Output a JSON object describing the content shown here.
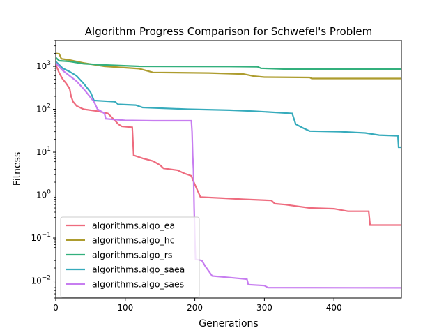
{
  "chart_data": {
    "type": "line",
    "title": "Algorithm Progress Comparison for Schwefel's Problem",
    "xlabel": "Generations",
    "ylabel": "Fitness",
    "xlim": [
      0,
      497
    ],
    "ylim": [
      0.004,
      4000
    ],
    "yscale": "log",
    "grid": false,
    "legend_position": "lower-left",
    "x_ticks": [
      {
        "value": 0,
        "label": "0"
      },
      {
        "value": 100,
        "label": "100"
      },
      {
        "value": 200,
        "label": "200"
      },
      {
        "value": 300,
        "label": "300"
      },
      {
        "value": 400,
        "label": "400"
      }
    ],
    "y_ticks": [
      {
        "value": 0.01,
        "base": "10",
        "exp": "−2"
      },
      {
        "value": 0.1,
        "base": "10",
        "exp": "−1"
      },
      {
        "value": 1,
        "base": "10",
        "exp": "0"
      },
      {
        "value": 10,
        "base": "10",
        "exp": "1"
      },
      {
        "value": 100,
        "base": "10",
        "exp": "2"
      },
      {
        "value": 1000,
        "base": "10",
        "exp": "3"
      }
    ],
    "series": [
      {
        "name": "algorithms.algo_ea",
        "color": "#ee6b7e",
        "points": [
          [
            0,
            1100
          ],
          [
            5,
            700
          ],
          [
            10,
            500
          ],
          [
            15,
            400
          ],
          [
            20,
            300
          ],
          [
            22,
            200
          ],
          [
            25,
            150
          ],
          [
            30,
            120
          ],
          [
            40,
            100
          ],
          [
            60,
            90
          ],
          [
            75,
            80
          ],
          [
            85,
            55
          ],
          [
            90,
            45
          ],
          [
            95,
            40
          ],
          [
            110,
            38
          ],
          [
            112,
            8.5
          ],
          [
            125,
            7.2
          ],
          [
            140,
            6.2
          ],
          [
            150,
            5
          ],
          [
            155,
            4.2
          ],
          [
            175,
            3.8
          ],
          [
            185,
            3.2
          ],
          [
            195,
            2.8
          ],
          [
            198,
            2.1
          ],
          [
            208,
            0.9
          ],
          [
            240,
            0.85
          ],
          [
            270,
            0.8
          ],
          [
            310,
            0.75
          ],
          [
            315,
            0.63
          ],
          [
            330,
            0.6
          ],
          [
            365,
            0.5
          ],
          [
            400,
            0.48
          ],
          [
            420,
            0.42
          ],
          [
            450,
            0.42
          ],
          [
            452,
            0.2
          ],
          [
            497,
            0.2
          ]
        ]
      },
      {
        "name": "algorithms.algo_hc",
        "color": "#ad9c2e",
        "points": [
          [
            0,
            2000
          ],
          [
            5,
            1950
          ],
          [
            8,
            1500
          ],
          [
            20,
            1400
          ],
          [
            40,
            1200
          ],
          [
            70,
            1000
          ],
          [
            120,
            880
          ],
          [
            140,
            720
          ],
          [
            220,
            700
          ],
          [
            270,
            660
          ],
          [
            285,
            590
          ],
          [
            300,
            560
          ],
          [
            365,
            550
          ],
          [
            368,
            520
          ],
          [
            497,
            520
          ]
        ]
      },
      {
        "name": "algorithms.algo_rs",
        "color": "#33b07d",
        "points": [
          [
            0,
            1600
          ],
          [
            5,
            1350
          ],
          [
            20,
            1300
          ],
          [
            40,
            1150
          ],
          [
            70,
            1080
          ],
          [
            120,
            1000
          ],
          [
            250,
            990
          ],
          [
            290,
            980
          ],
          [
            295,
            900
          ],
          [
            335,
            860
          ],
          [
            497,
            860
          ]
        ]
      },
      {
        "name": "algorithms.algo_saea",
        "color": "#36abbc",
        "points": [
          [
            0,
            1300
          ],
          [
            10,
            900
          ],
          [
            20,
            750
          ],
          [
            30,
            600
          ],
          [
            40,
            400
          ],
          [
            50,
            250
          ],
          [
            55,
            160
          ],
          [
            85,
            150
          ],
          [
            90,
            130
          ],
          [
            115,
            125
          ],
          [
            125,
            110
          ],
          [
            190,
            100
          ],
          [
            250,
            95
          ],
          [
            285,
            90
          ],
          [
            340,
            80
          ],
          [
            345,
            45
          ],
          [
            355,
            37
          ],
          [
            365,
            31
          ],
          [
            410,
            30
          ],
          [
            445,
            28
          ],
          [
            465,
            25
          ],
          [
            492,
            24
          ],
          [
            493,
            13
          ],
          [
            497,
            13
          ]
        ]
      },
      {
        "name": "algorithms.algo_saes",
        "color": "#c77df0",
        "points": [
          [
            0,
            1200
          ],
          [
            10,
            800
          ],
          [
            20,
            600
          ],
          [
            30,
            450
          ],
          [
            40,
            300
          ],
          [
            55,
            150
          ],
          [
            60,
            100
          ],
          [
            70,
            80
          ],
          [
            72,
            60
          ],
          [
            100,
            55
          ],
          [
            140,
            54
          ],
          [
            195,
            54
          ],
          [
            196,
            30
          ],
          [
            197,
            8
          ],
          [
            198,
            4
          ],
          [
            199,
            0.5
          ],
          [
            200,
            0.1
          ],
          [
            201,
            0.032
          ],
          [
            210,
            0.03
          ],
          [
            215,
            0.022
          ],
          [
            225,
            0.013
          ],
          [
            250,
            0.012
          ],
          [
            275,
            0.011
          ],
          [
            277,
            0.0082
          ],
          [
            300,
            0.0078
          ],
          [
            305,
            0.007
          ],
          [
            497,
            0.0069
          ]
        ]
      }
    ]
  }
}
